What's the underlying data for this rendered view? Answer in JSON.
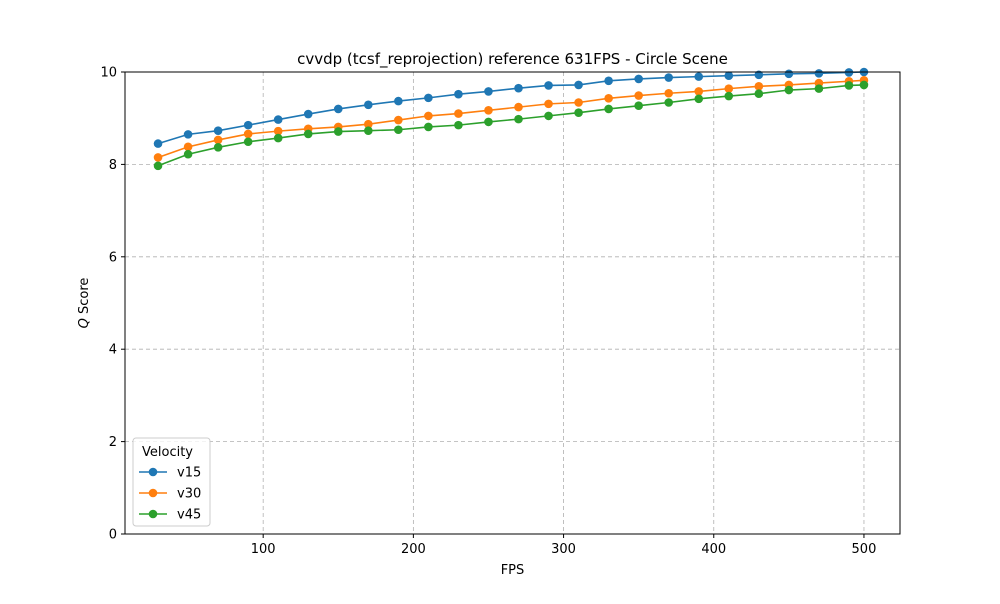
{
  "chart_data": {
    "type": "line",
    "title": "cvvdp (tcsf_reprojection) reference 631FPS - Circle Scene",
    "xlabel": "FPS",
    "ylabel_italic": "Q",
    "ylabel_rest": " Score",
    "xlim": [
      8,
      524
    ],
    "ylim": [
      0,
      10
    ],
    "xticks": [
      100,
      200,
      300,
      400,
      500
    ],
    "yticks": [
      0,
      2,
      4,
      6,
      8,
      10
    ],
    "grid": true,
    "legend": {
      "title": "Velocity",
      "placement": "lower-left"
    },
    "x": [
      30,
      50,
      70,
      90,
      110,
      130,
      150,
      170,
      190,
      210,
      230,
      250,
      270,
      290,
      310,
      330,
      350,
      370,
      390,
      410,
      430,
      450,
      470,
      490,
      500
    ],
    "series": [
      {
        "name": "v15",
        "color": "#1f77b4",
        "values": [
          8.45,
          8.65,
          8.73,
          8.85,
          8.97,
          9.09,
          9.2,
          9.29,
          9.37,
          9.44,
          9.52,
          9.58,
          9.65,
          9.71,
          9.72,
          9.81,
          9.85,
          9.88,
          9.9,
          9.92,
          9.94,
          9.96,
          9.97,
          9.99,
          10.0
        ]
      },
      {
        "name": "v30",
        "color": "#ff7f0e",
        "values": [
          8.15,
          8.38,
          8.53,
          8.66,
          8.72,
          8.77,
          8.81,
          8.87,
          8.96,
          9.05,
          9.1,
          9.17,
          9.24,
          9.31,
          9.34,
          9.43,
          9.49,
          9.54,
          9.58,
          9.64,
          9.69,
          9.72,
          9.76,
          9.8,
          9.82
        ]
      },
      {
        "name": "v45",
        "color": "#2ca02c",
        "values": [
          7.97,
          8.22,
          8.37,
          8.49,
          8.57,
          8.66,
          8.71,
          8.73,
          8.75,
          8.81,
          8.85,
          8.92,
          8.98,
          9.05,
          9.12,
          9.2,
          9.27,
          9.34,
          9.42,
          9.48,
          9.53,
          9.61,
          9.64,
          9.71,
          9.72
        ]
      }
    ]
  }
}
